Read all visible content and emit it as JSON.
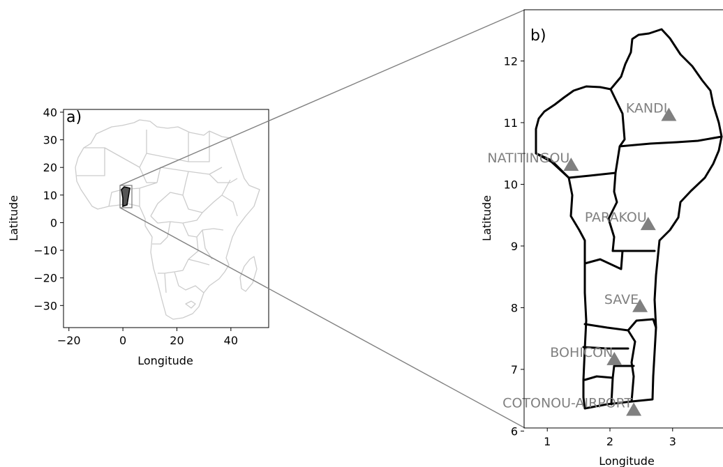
{
  "panel_a": {
    "label": "a)",
    "xlabel": "Longitude",
    "ylabel": "Latitude",
    "xticks": [
      "−20",
      "0",
      "20",
      "40"
    ],
    "yticks": [
      "40",
      "30",
      "20",
      "10",
      "0",
      "−10",
      "−20",
      "−30"
    ],
    "xlim": [
      -22,
      54
    ],
    "ylim": [
      -38,
      41
    ],
    "colors": {
      "borders": "#cccccc",
      "highlight": "#000000",
      "zoom_lines": "#808080"
    }
  },
  "panel_b": {
    "label": "b)",
    "xlabel": "Longitude",
    "ylabel": "Latitude",
    "xticks": [
      "1",
      "2",
      "3"
    ],
    "yticks": [
      "12",
      "11",
      "10",
      "9",
      "8",
      "7",
      "6"
    ],
    "xlim": [
      0.63,
      3.86
    ],
    "ylim": [
      6.05,
      12.83
    ],
    "stations": [
      {
        "name": "KANDI",
        "lon": 2.94,
        "lat": 11.13
      },
      {
        "name": "NATITINGOU",
        "lon": 1.38,
        "lat": 10.32
      },
      {
        "name": "PARAKOU",
        "lon": 2.61,
        "lat": 9.36
      },
      {
        "name": "SAVE",
        "lon": 2.48,
        "lat": 8.03
      },
      {
        "name": "BOHICON",
        "lon": 2.07,
        "lat": 7.17
      },
      {
        "name": "COTONOU-AIRPORT",
        "lon": 2.38,
        "lat": 6.35
      }
    ],
    "colors": {
      "borders": "#000000",
      "station_marker": "#808080",
      "station_label": "#808080"
    }
  }
}
